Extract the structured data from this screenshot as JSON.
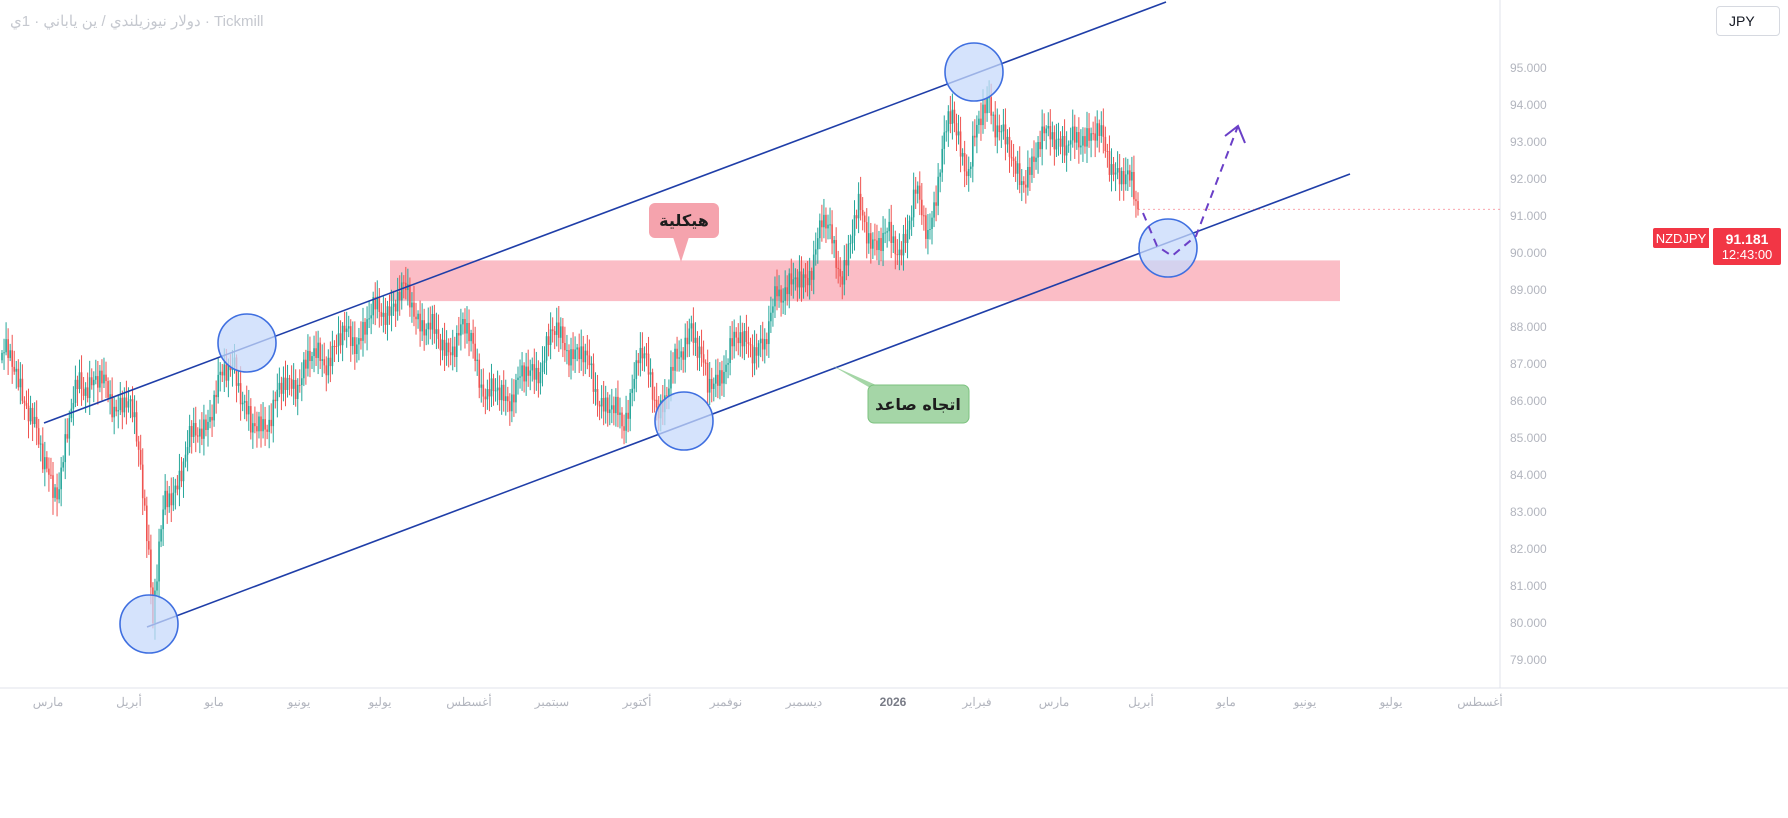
{
  "header": {
    "title": "دولار نيوزيلندي / ين ياباني · 1ي · Tickmill"
  },
  "currency_selector": {
    "label": "JPY"
  },
  "price_badge": {
    "ticker": "NZDJPY",
    "price": "91.181",
    "countdown": "12:43:00"
  },
  "annotations": {
    "zone_label": "هيكلية",
    "trend_label": "اتجاه صاعد"
  },
  "colors": {
    "up_candle": "#26a69a",
    "down_candle": "#ef5350",
    "channel_line": "#1f3ea8",
    "zone_fill": "#fbb6c0",
    "zone_label_bg": "#f5a3ad",
    "trend_label_bg": "#a5d6a7",
    "circle_fill": "#c7d9fb",
    "circle_stroke": "#3f6fe0",
    "projection": "#6a3fc7",
    "price_badge": "#f23645"
  },
  "chart_data": {
    "type": "candlestick",
    "symbol": "NZDJPY",
    "timeframe": "1D",
    "ylim": [
      78.0,
      96.0
    ],
    "yticks": [
      "79.000",
      "80.000",
      "81.000",
      "82.000",
      "83.000",
      "84.000",
      "85.000",
      "86.000",
      "87.000",
      "88.000",
      "89.000",
      "90.000",
      "91.000",
      "92.000",
      "93.000",
      "94.000",
      "95.000"
    ],
    "xticks": [
      "مارس",
      "أبريل",
      "مايو",
      "يونيو",
      "يوليو",
      "أغسطس",
      "سبتمبر",
      "أكتوبر",
      "نوفمبر",
      "ديسمبر",
      "2026",
      "فبراير",
      "مارس",
      "أبريل",
      "مايو",
      "يونيو",
      "يوليو",
      "أغسطس"
    ],
    "last_price": 91.181,
    "path_anchors": [
      {
        "i": 0,
        "p": 87.3
      },
      {
        "i": 12,
        "p": 86.2
      },
      {
        "i": 20,
        "p": 84.2
      },
      {
        "i": 28,
        "p": 83.8
      },
      {
        "i": 38,
        "p": 86.7
      },
      {
        "i": 50,
        "p": 86.3
      },
      {
        "i": 62,
        "p": 85.8
      },
      {
        "i": 68,
        "p": 84.5
      },
      {
        "i": 72,
        "p": 82.0
      },
      {
        "i": 74,
        "p": 80.2
      },
      {
        "i": 80,
        "p": 83.2
      },
      {
        "i": 90,
        "p": 84.5
      },
      {
        "i": 104,
        "p": 86.0
      },
      {
        "i": 114,
        "p": 87.2
      },
      {
        "i": 122,
        "p": 85.0
      },
      {
        "i": 132,
        "p": 85.8
      },
      {
        "i": 146,
        "p": 86.8
      },
      {
        "i": 162,
        "p": 87.4
      },
      {
        "i": 178,
        "p": 88.0
      },
      {
        "i": 188,
        "p": 88.6
      },
      {
        "i": 200,
        "p": 88.8
      },
      {
        "i": 212,
        "p": 87.6
      },
      {
        "i": 222,
        "p": 87.6
      },
      {
        "i": 230,
        "p": 87.8
      },
      {
        "i": 238,
        "p": 86.0
      },
      {
        "i": 246,
        "p": 86.2
      },
      {
        "i": 258,
        "p": 86.6
      },
      {
        "i": 270,
        "p": 87.7
      },
      {
        "i": 278,
        "p": 87.6
      },
      {
        "i": 288,
        "p": 86.8
      },
      {
        "i": 298,
        "p": 85.7
      },
      {
        "i": 304,
        "p": 85.3
      },
      {
        "i": 312,
        "p": 87.3
      },
      {
        "i": 322,
        "p": 85.9
      },
      {
        "i": 332,
        "p": 87.0
      },
      {
        "i": 338,
        "p": 88.3
      },
      {
        "i": 346,
        "p": 86.2
      },
      {
        "i": 354,
        "p": 87.1
      },
      {
        "i": 366,
        "p": 87.8
      },
      {
        "i": 374,
        "p": 87.2
      },
      {
        "i": 380,
        "p": 89.2
      },
      {
        "i": 392,
        "p": 89.0
      },
      {
        "i": 402,
        "p": 90.8
      },
      {
        "i": 412,
        "p": 89.6
      },
      {
        "i": 420,
        "p": 91.0
      },
      {
        "i": 430,
        "p": 90.3
      },
      {
        "i": 440,
        "p": 90.2
      },
      {
        "i": 448,
        "p": 91.4
      },
      {
        "i": 454,
        "p": 90.6
      },
      {
        "i": 460,
        "p": 92.4
      },
      {
        "i": 466,
        "p": 93.7
      },
      {
        "i": 474,
        "p": 92.3
      },
      {
        "i": 484,
        "p": 94.3
      },
      {
        "i": 490,
        "p": 93.2
      },
      {
        "i": 496,
        "p": 92.2
      },
      {
        "i": 506,
        "p": 92.3
      },
      {
        "i": 514,
        "p": 93.6
      },
      {
        "i": 522,
        "p": 92.6
      },
      {
        "i": 530,
        "p": 93.4
      },
      {
        "i": 538,
        "p": 93.0
      },
      {
        "i": 546,
        "p": 92.4
      },
      {
        "i": 554,
        "p": 91.6
      },
      {
        "i": 557,
        "p": 91.181
      }
    ],
    "channel_upper": [
      {
        "x": 44,
        "y": 423
      },
      {
        "x": 1166,
        "y": 2
      }
    ],
    "channel_lower": [
      {
        "x": 147,
        "y": 627
      },
      {
        "x": 1350,
        "y": 174
      }
    ],
    "zone": {
      "x1": 390,
      "x2": 1340,
      "top": 89.8,
      "bottom": 88.7
    },
    "touch_points": [
      {
        "x": 149,
        "y": 624
      },
      {
        "x": 247,
        "y": 343
      },
      {
        "x": 684,
        "y": 421
      },
      {
        "x": 974,
        "y": 72
      },
      {
        "x": 1168,
        "y": 248
      }
    ],
    "projection": [
      {
        "x": 1143,
        "y": 213
      },
      {
        "x": 1157,
        "y": 246
      },
      {
        "x": 1172,
        "y": 256
      },
      {
        "x": 1196,
        "y": 236
      },
      {
        "x": 1238,
        "y": 126
      }
    ]
  }
}
